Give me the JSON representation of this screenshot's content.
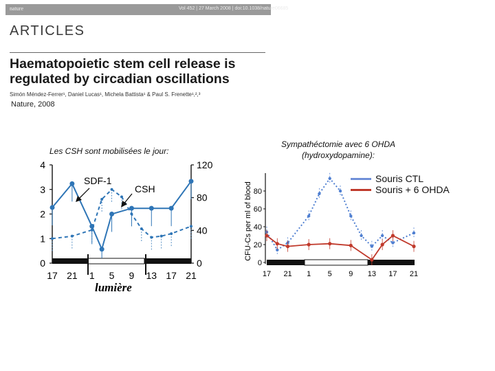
{
  "header": {
    "journal": "nature",
    "volume_info": "Vol 452 | 27 March 2008 | doi:10.1038/nature06685"
  },
  "section": "ARTICLES",
  "paper": {
    "title": "Haematopoietic stem cell release is regulated by circadian oscillations",
    "authors": "Simón Méndez-Ferrer¹, Daniel Lucas¹, Michela Battista¹ & Paul S. Frenette¹,²,³",
    "citation": "Nature, 2008"
  },
  "colors": {
    "blue": "#2e75b6",
    "red": "#c0392b",
    "dark": "#111111"
  },
  "chart_data": [
    {
      "type": "line",
      "caption": "Les CSH sont mobilisées le jour:",
      "x": [
        17,
        21,
        1,
        5,
        9,
        13,
        17,
        21
      ],
      "xticks": [
        "17",
        "21",
        "1",
        "5",
        "9",
        "13",
        "17",
        "21"
      ],
      "y_left_ticks": [
        "0",
        "1",
        "2",
        "3",
        "4"
      ],
      "y_right_ticks": [
        "0",
        "40",
        "80",
        "120"
      ],
      "ylim_left": [
        0,
        4
      ],
      "ylim_right": [
        0,
        120
      ],
      "series": [
        {
          "name": "SDF-1",
          "axis": "left",
          "style": "dashed",
          "color": "#2e75b6",
          "points": [
            [
              17,
              1.0
            ],
            [
              21,
              1.1
            ],
            [
              1,
              1.35
            ],
            [
              3,
              2.6
            ],
            [
              5,
              3.0
            ],
            [
              7,
              2.7
            ],
            [
              9,
              2.0
            ],
            [
              11,
              1.4
            ],
            [
              13,
              1.05
            ],
            [
              15,
              1.1
            ],
            [
              17,
              1.2
            ],
            [
              21,
              1.5
            ]
          ]
        },
        {
          "name": "CSH",
          "axis": "right",
          "style": "solid",
          "color": "#2e75b6",
          "points": [
            [
              17,
              68
            ],
            [
              21,
              97
            ],
            [
              1,
              45
            ],
            [
              3,
              17
            ],
            [
              5,
              60
            ],
            [
              9,
              67
            ],
            [
              13,
              67
            ],
            [
              17,
              67
            ],
            [
              21,
              100
            ]
          ]
        }
      ],
      "labels": {
        "sdf1": "SDF-1",
        "csh": "CSH",
        "light": "lumière"
      }
    },
    {
      "type": "line",
      "caption": "Sympathéctomie avec 6 OHDA (hydroxydopamine):",
      "ylabel": "CFU-Cs per ml of blood",
      "x": [
        17,
        21,
        1,
        5,
        9,
        13,
        17,
        21
      ],
      "xticks": [
        "17",
        "21",
        "1",
        "5",
        "9",
        "13",
        "17",
        "21"
      ],
      "yticks": [
        "0",
        "20",
        "40",
        "60",
        "80"
      ],
      "ylim": [
        0,
        100
      ],
      "series": [
        {
          "name": "Souris CTL",
          "style": "dashed",
          "color": "#4f7fd1",
          "points": [
            [
              17,
              34
            ],
            [
              19,
              14
            ],
            [
              21,
              22
            ],
            [
              1,
              52
            ],
            [
              3,
              77
            ],
            [
              5,
              94
            ],
            [
              7,
              80
            ],
            [
              9,
              52
            ],
            [
              11,
              30
            ],
            [
              13,
              18
            ],
            [
              15,
              30
            ],
            [
              17,
              22
            ],
            [
              21,
              33
            ]
          ]
        },
        {
          "name": "Souris + 6 OHDA",
          "style": "solid",
          "color": "#c0392b",
          "points": [
            [
              17,
              30
            ],
            [
              19,
              21
            ],
            [
              21,
              18
            ],
            [
              1,
              20
            ],
            [
              5,
              21
            ],
            [
              9,
              19
            ],
            [
              13,
              3
            ],
            [
              15,
              20
            ],
            [
              17,
              30
            ],
            [
              21,
              18
            ]
          ]
        }
      ],
      "legend": [
        "Souris CTL",
        "Souris + 6 OHDA"
      ]
    }
  ]
}
